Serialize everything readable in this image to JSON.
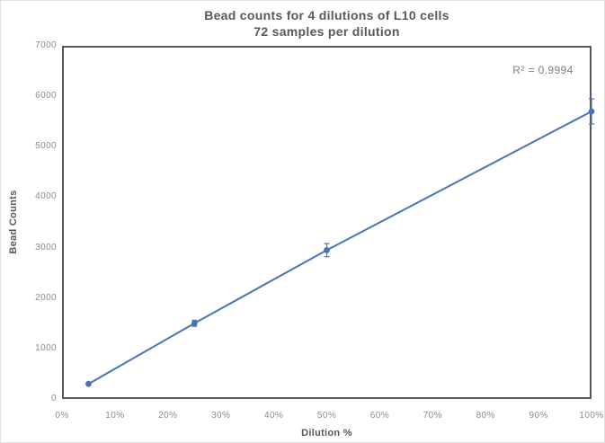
{
  "figure": {
    "title_line1": "Bead counts for 4 dilutions of L10 cells",
    "title_line2": "72 samples per dilution",
    "r_squared_label": "R² = 0.9994"
  },
  "chart_data": {
    "type": "scatter",
    "title": "Bead counts for 4 dilutions of L10 cells",
    "subtitle": "72 samples per dilution",
    "xlabel": "Dilution %",
    "ylabel": "Bead Counts",
    "xlim": [
      0,
      100
    ],
    "ylim": [
      0,
      7000
    ],
    "grid": false,
    "legend": "none",
    "x_ticks": [
      {
        "value": 0,
        "label": "0%"
      },
      {
        "value": 10,
        "label": "10%"
      },
      {
        "value": 20,
        "label": "20%"
      },
      {
        "value": 30,
        "label": "30%"
      },
      {
        "value": 40,
        "label": "40%"
      },
      {
        "value": 50,
        "label": "50%"
      },
      {
        "value": 60,
        "label": "60%"
      },
      {
        "value": 70,
        "label": "70%"
      },
      {
        "value": 80,
        "label": "80%"
      },
      {
        "value": 90,
        "label": "90%"
      },
      {
        "value": 100,
        "label": "100%"
      }
    ],
    "y_ticks": [
      {
        "value": 0,
        "label": "0"
      },
      {
        "value": 1000,
        "label": "1000"
      },
      {
        "value": 2000,
        "label": "2000"
      },
      {
        "value": 3000,
        "label": "3000"
      },
      {
        "value": 4000,
        "label": "4000"
      },
      {
        "value": 5000,
        "label": "5000"
      },
      {
        "value": 6000,
        "label": "6000"
      },
      {
        "value": 7000,
        "label": "7000"
      }
    ],
    "series": [
      {
        "name": "Bead counts",
        "marker": "circle",
        "line": "straight",
        "x": [
          5,
          25,
          50,
          100
        ],
        "y": [
          300,
          1500,
          2950,
          5700
        ],
        "y_err": [
          0,
          60,
          130,
          250
        ]
      }
    ],
    "annotation": {
      "text": "R² = 0.9994"
    },
    "colors": {
      "series": "#4A74B8",
      "frame": "#595959",
      "tick_label": "#8C8C8C",
      "axis_title": "#595959",
      "title": "#595959",
      "annotation": "#7F7F7F",
      "background": "#FFFFFF"
    }
  }
}
